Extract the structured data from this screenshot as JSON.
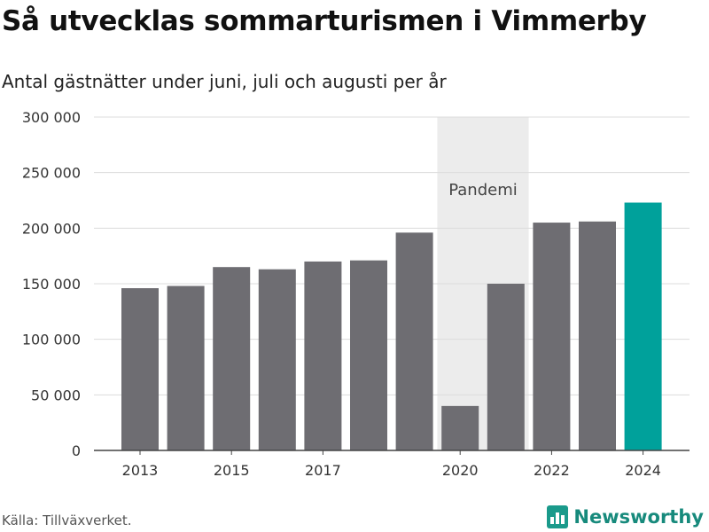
{
  "header": {
    "title": "Så utvecklas sommarturismen i Vimmerby",
    "subtitle": "Antal gästnätter under juni, juli och augusti per år"
  },
  "footer": {
    "source": "Källa: Tillväxverket.",
    "brand": "Newsworthy"
  },
  "colors": {
    "bar": "#6e6d72",
    "highlight": "#00a19b",
    "band": "#ececec",
    "grid": "#dcdcdc",
    "brand": "#178a7c"
  },
  "icons": {
    "brand_logo": "newsworthy-logo-icon"
  },
  "chart_data": {
    "type": "bar",
    "categories": [
      "2013",
      "2014",
      "2015",
      "2016",
      "2017",
      "2018",
      "2019",
      "2020",
      "2021",
      "2022",
      "2023",
      "2024"
    ],
    "values": [
      146000,
      148000,
      165000,
      163000,
      170000,
      171000,
      196000,
      40000,
      150000,
      205000,
      206000,
      223000
    ],
    "highlight_category": "2024",
    "ylim": [
      0,
      300000
    ],
    "yticks": [
      0,
      50000,
      100000,
      150000,
      200000,
      250000,
      300000
    ],
    "ytick_labels": [
      "0",
      "50 000",
      "100 000",
      "150 000",
      "200 000",
      "250 000",
      "300 000"
    ],
    "xtick_labels": [
      "2013",
      "2015",
      "2017",
      "2020",
      "2022",
      "2024"
    ],
    "xlabel": "",
    "ylabel": "",
    "grid": true,
    "annotations": [
      {
        "label": "Pandemi",
        "from": "2020",
        "to": "2021"
      }
    ]
  }
}
